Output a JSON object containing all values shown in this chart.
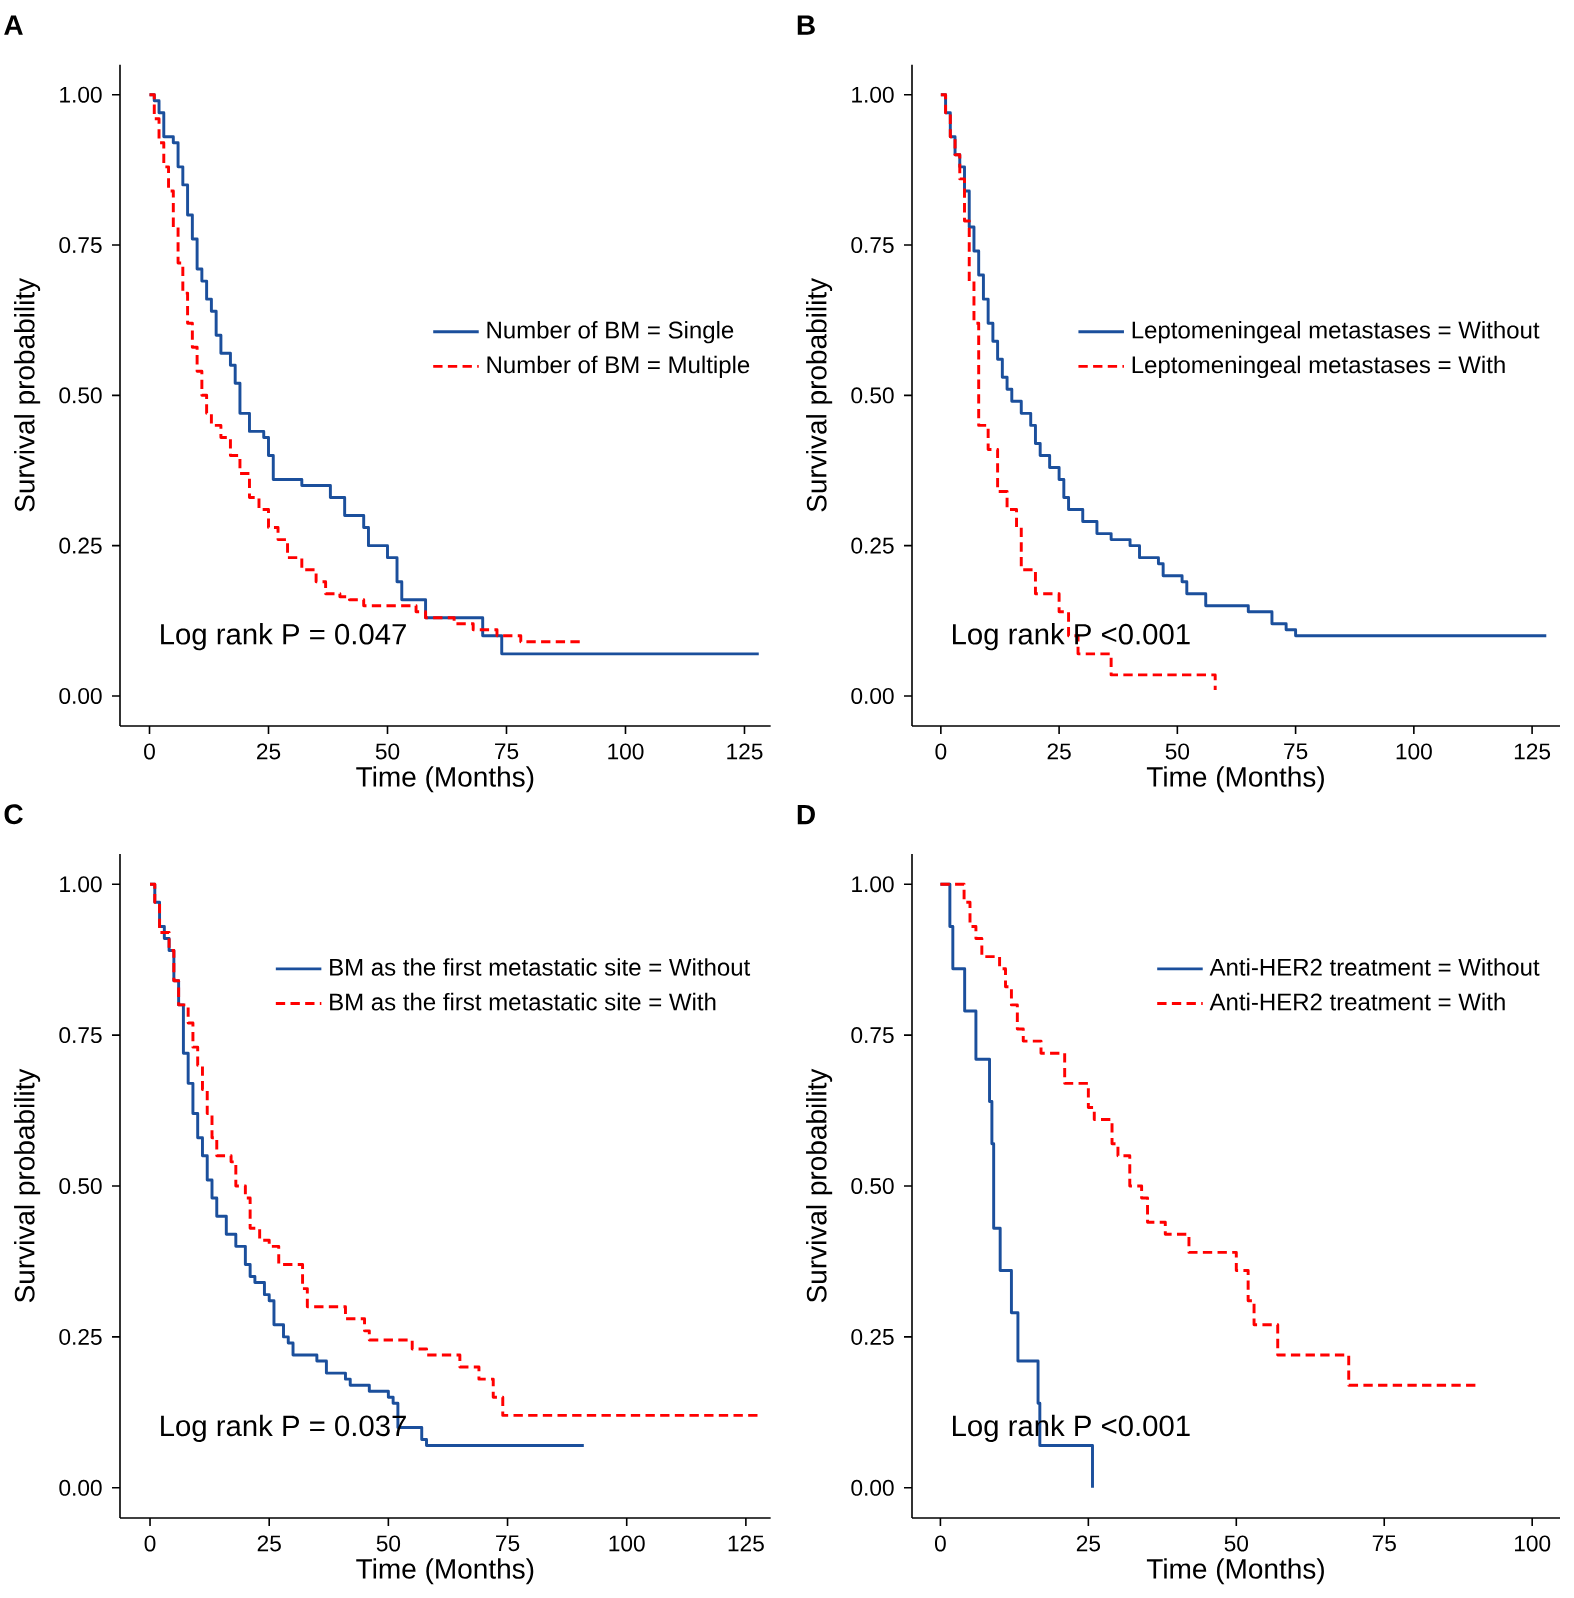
{
  "chart_data": [
    {
      "type": "step",
      "title": "A",
      "xlabel": "Time (Months)",
      "ylabel": "Survival probability",
      "legend": "right",
      "annotations": [
        "Log rank P = 0.047"
      ],
      "xlim": [
        -6.2,
        130.5
      ],
      "ylim": [
        -0.05,
        1.05
      ],
      "xticks": [
        0,
        25,
        50,
        75,
        100,
        125
      ],
      "yticks": [
        {
          "value": 0,
          "label": "0.00"
        },
        {
          "value": 0.25,
          "label": "0.25"
        },
        {
          "value": 0.5,
          "label": "0.50"
        },
        {
          "value": 0.75,
          "label": "0.75"
        },
        {
          "value": 1,
          "label": "1.00"
        }
      ],
      "series": [
        {
          "name": "Number of BM = Single",
          "color": "#1b4f9c",
          "line_style": "solid",
          "x": [
            0,
            1,
            2,
            3,
            5,
            6,
            7,
            8,
            9,
            10,
            11,
            12,
            13,
            14,
            15,
            17,
            18,
            19,
            21,
            24,
            25,
            26,
            32,
            38,
            41,
            45,
            46,
            50,
            52,
            53,
            58,
            70,
            74,
            128
          ],
          "values": [
            1.0,
            0.99,
            0.97,
            0.93,
            0.92,
            0.88,
            0.85,
            0.8,
            0.76,
            0.71,
            0.69,
            0.66,
            0.64,
            0.6,
            0.57,
            0.55,
            0.52,
            0.47,
            0.44,
            0.43,
            0.4,
            0.36,
            0.35,
            0.33,
            0.3,
            0.28,
            0.25,
            0.23,
            0.19,
            0.16,
            0.13,
            0.1,
            0.07,
            0.07
          ]
        },
        {
          "name": "Number of BM = Multiple",
          "color": "#ff0000",
          "line_style": "dashed",
          "x": [
            0,
            1,
            2,
            3,
            4,
            5,
            6,
            7,
            8,
            9,
            10,
            11,
            12,
            13,
            15,
            17,
            19,
            21,
            23,
            25,
            27,
            29,
            32,
            35,
            37,
            40,
            42,
            45,
            56,
            58,
            64,
            68,
            73,
            78,
            91
          ],
          "values": [
            1.0,
            0.96,
            0.92,
            0.88,
            0.84,
            0.78,
            0.72,
            0.67,
            0.62,
            0.58,
            0.54,
            0.5,
            0.47,
            0.45,
            0.43,
            0.4,
            0.37,
            0.33,
            0.31,
            0.28,
            0.26,
            0.23,
            0.21,
            0.19,
            0.17,
            0.165,
            0.16,
            0.15,
            0.14,
            0.13,
            0.12,
            0.11,
            0.1,
            0.09,
            0.09
          ]
        }
      ]
    },
    {
      "type": "step",
      "title": "B",
      "xlabel": "Time (Months)",
      "ylabel": "Survival probability",
      "legend": "right",
      "annotations": [
        "Log rank P <0.001"
      ],
      "xlim": [
        -6.1,
        130.9
      ],
      "ylim": [
        -0.05,
        1.05
      ],
      "xticks": [
        0,
        25,
        50,
        75,
        100,
        125
      ],
      "yticks": [
        {
          "value": 0,
          "label": "0.00"
        },
        {
          "value": 0.25,
          "label": "0.25"
        },
        {
          "value": 0.5,
          "label": "0.50"
        },
        {
          "value": 0.75,
          "label": "0.75"
        },
        {
          "value": 1,
          "label": "1.00"
        }
      ],
      "series": [
        {
          "name": "Leptomeningeal metastases = Without",
          "color": "#1b4f9c",
          "line_style": "solid",
          "x": [
            0,
            1,
            2,
            3,
            4,
            5,
            6,
            7,
            8,
            9,
            10,
            11,
            12,
            13,
            14,
            15,
            17,
            19,
            20,
            21,
            23,
            25,
            26,
            27,
            30,
            33,
            36,
            40,
            42,
            46,
            47,
            51,
            52,
            56,
            65,
            70,
            73,
            75,
            128
          ],
          "values": [
            1.0,
            0.97,
            0.93,
            0.9,
            0.88,
            0.84,
            0.78,
            0.74,
            0.7,
            0.66,
            0.62,
            0.59,
            0.56,
            0.53,
            0.51,
            0.49,
            0.47,
            0.45,
            0.42,
            0.4,
            0.38,
            0.36,
            0.33,
            0.31,
            0.29,
            0.27,
            0.26,
            0.25,
            0.23,
            0.22,
            0.2,
            0.19,
            0.17,
            0.15,
            0.14,
            0.12,
            0.11,
            0.1,
            0.1
          ]
        },
        {
          "name": "Leptomeningeal metastases = With",
          "color": "#ff0000",
          "line_style": "dashed",
          "x": [
            0,
            1,
            2,
            3,
            4,
            5,
            6,
            7,
            8,
            10,
            12,
            14,
            16,
            17,
            20,
            25,
            27,
            29,
            36,
            58
          ],
          "values": [
            1.0,
            0.97,
            0.93,
            0.9,
            0.86,
            0.79,
            0.69,
            0.62,
            0.45,
            0.41,
            0.34,
            0.31,
            0.28,
            0.21,
            0.17,
            0.14,
            0.1,
            0.07,
            0.035,
            0.01
          ]
        }
      ]
    },
    {
      "type": "step",
      "title": "C",
      "xlabel": "Time (Months)",
      "ylabel": "Survival probability",
      "legend": "top right",
      "annotations": [
        "Log rank P = 0.037"
      ],
      "xlim": [
        -6.3,
        130.2
      ],
      "ylim": [
        -0.05,
        1.05
      ],
      "xticks": [
        0,
        25,
        50,
        75,
        100,
        125
      ],
      "yticks": [
        {
          "value": 0,
          "label": "0.00"
        },
        {
          "value": 0.25,
          "label": "0.25"
        },
        {
          "value": 0.5,
          "label": "0.50"
        },
        {
          "value": 0.75,
          "label": "0.75"
        },
        {
          "value": 1,
          "label": "1.00"
        }
      ],
      "series": [
        {
          "name": "BM as the first metastatic site = Without",
          "color": "#1b4f9c",
          "line_style": "solid",
          "x": [
            0,
            1,
            2,
            3,
            4,
            5,
            6,
            7,
            8,
            9,
            10,
            11,
            12,
            13,
            14,
            16,
            18,
            20,
            21,
            22,
            24,
            25,
            26,
            28,
            29,
            30,
            35,
            37,
            41,
            42,
            46,
            50,
            51,
            52,
            57,
            58,
            91
          ],
          "values": [
            1.0,
            0.97,
            0.93,
            0.91,
            0.89,
            0.84,
            0.8,
            0.72,
            0.67,
            0.62,
            0.58,
            0.55,
            0.51,
            0.48,
            0.45,
            0.42,
            0.4,
            0.37,
            0.35,
            0.34,
            0.32,
            0.31,
            0.27,
            0.25,
            0.24,
            0.22,
            0.21,
            0.19,
            0.18,
            0.17,
            0.16,
            0.15,
            0.14,
            0.1,
            0.08,
            0.07,
            0.07
          ]
        },
        {
          "name": "BM as the first metastatic site = With",
          "color": "#ff0000",
          "line_style": "dashed",
          "x": [
            0,
            1,
            2,
            4,
            5,
            6,
            8,
            9,
            10,
            11,
            12,
            13,
            14,
            17,
            18,
            20,
            21,
            23,
            25,
            27,
            32,
            33,
            41,
            45,
            46,
            55,
            58,
            65,
            69,
            72,
            74,
            128
          ],
          "values": [
            1.0,
            0.97,
            0.92,
            0.89,
            0.84,
            0.8,
            0.77,
            0.73,
            0.7,
            0.66,
            0.62,
            0.58,
            0.55,
            0.54,
            0.5,
            0.48,
            0.43,
            0.41,
            0.4,
            0.37,
            0.33,
            0.3,
            0.28,
            0.26,
            0.245,
            0.23,
            0.22,
            0.2,
            0.18,
            0.15,
            0.12,
            0.12
          ]
        }
      ]
    },
    {
      "type": "step",
      "title": "D",
      "xlabel": "Time (Months)",
      "ylabel": "Survival probability",
      "legend": "top right",
      "annotations": [
        "Log rank P <0.001"
      ],
      "xlim": [
        -4.8,
        104.7
      ],
      "ylim": [
        -0.05,
        1.05
      ],
      "xticks": [
        0,
        25,
        50,
        75,
        100
      ],
      "yticks": [
        {
          "value": 0,
          "label": "0.00"
        },
        {
          "value": 0.25,
          "label": "0.25"
        },
        {
          "value": 0.5,
          "label": "0.50"
        },
        {
          "value": 0.75,
          "label": "0.75"
        },
        {
          "value": 1,
          "label": "1.00"
        }
      ],
      "series": [
        {
          "name": "Anti-HER2 treatment = Without",
          "color": "#1b4f9c",
          "line_style": "solid",
          "x": [
            0,
            1.6,
            2.1,
            4.1,
            6,
            8.3,
            8.7,
            9,
            10.1,
            12,
            13.1,
            16.5,
            16.8,
            25.7
          ],
          "values": [
            1.0,
            0.93,
            0.86,
            0.79,
            0.71,
            0.64,
            0.57,
            0.43,
            0.36,
            0.29,
            0.21,
            0.14,
            0.07,
            0.0
          ]
        },
        {
          "name": "Anti-HER2 treatment = With",
          "color": "#ff0000",
          "line_style": "dashed",
          "x": [
            0,
            4,
            5,
            6,
            7,
            10,
            11,
            12,
            13,
            14,
            17,
            21,
            25,
            26,
            29,
            30,
            32,
            34,
            35,
            38,
            42,
            50,
            52,
            53,
            57,
            69,
            91
          ],
          "values": [
            1.0,
            0.97,
            0.93,
            0.91,
            0.88,
            0.86,
            0.83,
            0.8,
            0.76,
            0.74,
            0.72,
            0.67,
            0.63,
            0.61,
            0.57,
            0.55,
            0.5,
            0.48,
            0.44,
            0.42,
            0.39,
            0.36,
            0.31,
            0.27,
            0.22,
            0.17,
            0.17
          ]
        }
      ]
    }
  ]
}
